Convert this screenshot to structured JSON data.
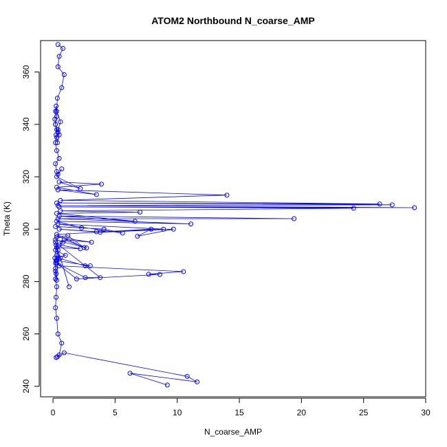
{
  "chart_data": {
    "type": "line",
    "title": "ATOM2 Northbound N_coarse_AMP",
    "xlabel": "N_coarse_AMP",
    "ylabel": "Theta (K)",
    "xlim": [
      -1,
      30
    ],
    "ylim": [
      236,
      372
    ],
    "x_ticks": [
      0,
      5,
      10,
      15,
      20,
      25,
      30
    ],
    "y_ticks": [
      240,
      260,
      280,
      300,
      320,
      340,
      360
    ],
    "grid": false,
    "legend": "none",
    "series_color": "#0000ff",
    "marker": "open-circle",
    "series": [
      {
        "x": [
          9.2,
          6.2,
          11.6,
          10.8,
          0.9,
          0.35,
          0.25,
          0.5,
          0.7,
          0.4,
          0.3,
          0.2,
          0.25,
          0.3,
          0.2,
          0.2,
          0.25,
          0.3,
          0.4,
          0.3,
          0.25,
          0.2,
          0.2,
          0.15,
          0.25,
          0.6,
          1.3,
          0.2,
          3.8,
          2.6,
          0.3,
          1.9,
          8.6,
          7.7,
          10.5,
          0.5,
          0.3,
          3.0,
          2.6,
          0.4,
          1.0,
          0.2,
          0.3,
          2.2,
          0.5,
          0.8,
          0.2,
          2.7,
          0.9,
          3.1,
          0.3,
          1.2,
          2.5,
          0.3,
          7.9,
          6.8,
          9.7,
          3.8,
          0.5,
          3.5,
          8.9,
          0.4,
          5.6,
          4.1,
          0.2,
          2.3,
          0.3,
          11.1,
          0.4,
          19.4,
          0.5,
          6.6,
          0.3,
          7.0,
          0.6,
          24.2,
          0.5,
          29.1,
          0.4,
          27.3,
          0.3,
          26.3,
          0.6,
          14.0,
          0.4,
          3.5,
          0.3,
          3.9,
          0.5,
          2.2,
          0.3,
          0.7,
          0.4,
          0.3,
          0.2,
          0.5,
          0.3,
          0.2,
          0.25,
          0.3,
          0.2,
          0.15,
          0.2,
          0.25,
          0.3,
          0.2,
          0.4,
          0.3,
          0.35,
          0.5,
          0.4,
          0.6,
          0.3,
          0.35,
          0.7,
          0.9,
          0.4,
          0.5,
          0.8,
          0.4
        ],
        "y": [
          240.5,
          245.0,
          241.7,
          243.8,
          252.8,
          251.3,
          251.0,
          252.0,
          256.5,
          260.0,
          266.0,
          270.0,
          274.0,
          278.0,
          281.0,
          284.0,
          288.0,
          290.0,
          292.0,
          280.5,
          283.0,
          285.0,
          287.0,
          289.0,
          294.0,
          289.0,
          278.0,
          295.0,
          281.5,
          281.5,
          287.0,
          281.0,
          282.7,
          282.8,
          283.8,
          286.0,
          288.0,
          286.0,
          286.0,
          289.0,
          290.0,
          292.0,
          293.0,
          292.5,
          294.0,
          295.0,
          296.0,
          292.8,
          296.0,
          295.0,
          297.0,
          297.5,
          293.0,
          298.0,
          300.0,
          297.3,
          300.0,
          298.8,
          300.0,
          299.0,
          300.0,
          302.0,
          298.5,
          300.0,
          301.0,
          300.5,
          303.0,
          302.0,
          304.0,
          304.0,
          305.0,
          303.0,
          306.0,
          306.5,
          307.0,
          308.0,
          308.5,
          308.2,
          309.0,
          309.3,
          310.0,
          309.6,
          311.0,
          313.0,
          315.0,
          313.2,
          316.0,
          317.2,
          318.0,
          315.5,
          320.0,
          323.0,
          321.0,
          322.0,
          325.0,
          327.0,
          330.0,
          333.0,
          336.0,
          338.0,
          340.0,
          342.0,
          345.0,
          347.0,
          343.0,
          340.0,
          337.0,
          335.0,
          333.0,
          336.0,
          338.0,
          341.0,
          345.0,
          350.0,
          354.0,
          359.0,
          362.0,
          366.0,
          369.0,
          370.5
        ]
      }
    ]
  }
}
